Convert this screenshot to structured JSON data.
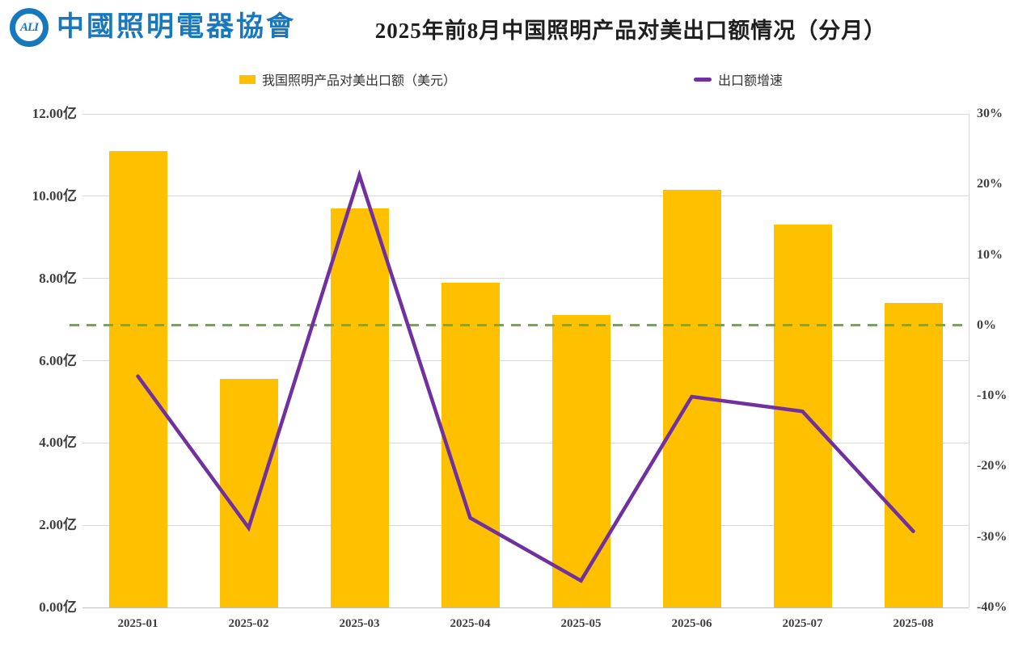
{
  "header": {
    "logo": {
      "circle_text": "ALI",
      "org_name_cn": "中國照明電器協會",
      "brand_color": "#1878BE"
    },
    "title": "2025年前8月中国照明产品对美出口额情况（分月）"
  },
  "legend": {
    "bar_label": "我国照明产品对美出口额（美元）",
    "line_label": "出口额增速"
  },
  "colors": {
    "bar": "#FFC000",
    "line": "#7030A0",
    "zero_line": "#70AD47",
    "grid": "#D9D9D9",
    "axis_text": "#3F3F3F"
  },
  "chart_data": {
    "type": "bar",
    "subtype": "combo bar+line, dual y-axis",
    "title": "2025年前8月中国照明产品对美出口额情况（分月）",
    "categories": [
      "2025-01",
      "2025-02",
      "2025-03",
      "2025-04",
      "2025-05",
      "2025-06",
      "2025-07",
      "2025-08"
    ],
    "series": [
      {
        "name": "我国照明产品对美出口额（美元）",
        "type": "bar",
        "axis": "left",
        "unit": "亿美元",
        "color": "#FFC000",
        "values": [
          11.1,
          5.55,
          9.7,
          7.9,
          7.1,
          10.15,
          9.3,
          7.4
        ]
      },
      {
        "name": "出口额增速",
        "type": "line",
        "axis": "right",
        "unit": "%",
        "color": "#7030A0",
        "values": [
          -7.2,
          -28.7,
          21.3,
          -27.3,
          -36.2,
          -10.1,
          -12.2,
          -29.2
        ]
      }
    ],
    "left_axis": {
      "min": 0,
      "max": 12,
      "step": 2,
      "tick_labels": [
        "0.00亿",
        "2.00亿",
        "4.00亿",
        "6.00亿",
        "8.00亿",
        "10.00亿",
        "12.00亿"
      ]
    },
    "right_axis": {
      "min": -40,
      "max": 30,
      "step": 10,
      "tick_labels": [
        "-40%",
        "-30%",
        "-20%",
        "-10%",
        "0%",
        "10%",
        "20%",
        "30%"
      ]
    },
    "reference_line": {
      "axis": "right",
      "value": 0,
      "style": "dashed",
      "color": "#70AD47"
    },
    "grid": true,
    "legend_position": "top"
  }
}
